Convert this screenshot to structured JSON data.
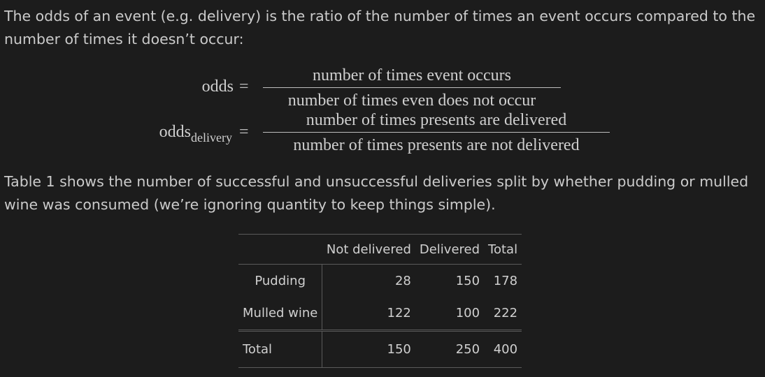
{
  "paragraph1": "The odds of an event (e.g. delivery) is the ratio of the number of times an event occurs compared to the number of times it doesn’t occur:",
  "equations": [
    {
      "lhs": "odds",
      "sub": "",
      "numerator": "number of times event occurs",
      "denominator": "number of times even does not occur"
    },
    {
      "lhs": "odds",
      "sub": "delivery",
      "numerator": "number of times presents are delivered",
      "denominator": "number of times presents are not delivered"
    }
  ],
  "equals": "=",
  "paragraph2": "Table 1 shows the number of successful and unsuccessful deliveries split by whether pudding or mulled wine was consumed (we’re ignoring quantity to keep things simple).",
  "table": {
    "headers": [
      "",
      "Not delivered",
      "Delivered",
      "Total"
    ],
    "rows": [
      [
        "Pudding",
        "28",
        "150",
        "178"
      ],
      [
        "Mulled wine",
        "122",
        "100",
        "222"
      ]
    ],
    "footer": [
      "Total",
      "150",
      "250",
      "400"
    ]
  }
}
